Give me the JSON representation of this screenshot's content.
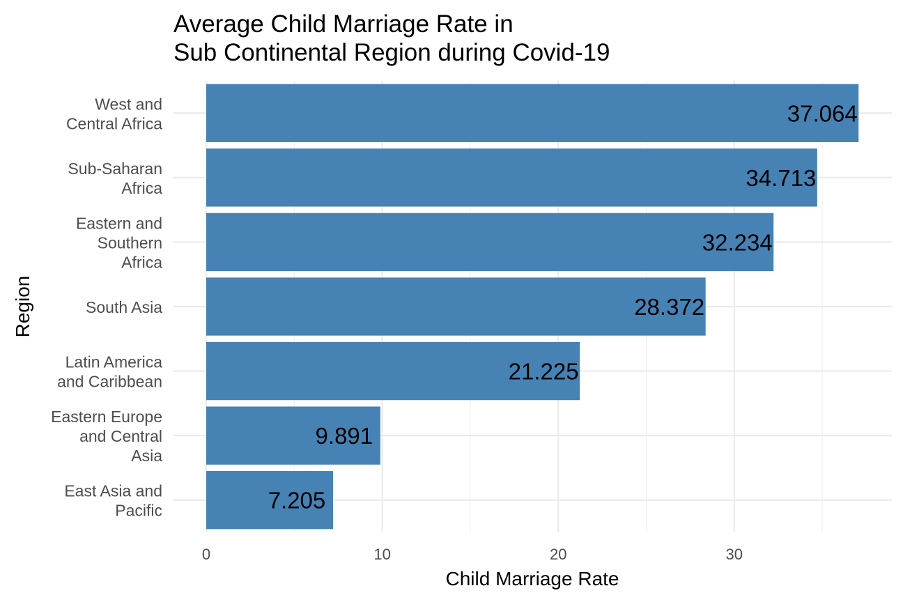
{
  "chart_data": {
    "type": "bar",
    "orientation": "horizontal",
    "title_lines": [
      "Average Child Marriage Rate in",
      "Sub Continental Region during Covid-19"
    ],
    "xlabel": "Child Marriage Rate",
    "ylabel": "Region",
    "xlim": [
      0,
      39
    ],
    "xticks": [
      0,
      10,
      20,
      30
    ],
    "grid": true,
    "bar_color": "#4682B4",
    "categories": [
      [
        "West and",
        "Central Africa"
      ],
      [
        "Sub-Saharan",
        "Africa"
      ],
      [
        "Eastern and",
        "Southern",
        "Africa"
      ],
      [
        "South Asia"
      ],
      [
        "Latin America",
        "and Caribbean"
      ],
      [
        "Eastern Europe",
        "and Central",
        "Asia"
      ],
      [
        "East Asia and",
        "Pacific"
      ]
    ],
    "values": [
      37.064,
      34.713,
      32.234,
      28.372,
      21.225,
      9.891,
      7.205
    ],
    "data_labels": [
      "37.064",
      "34.713",
      "32.234",
      "28.372",
      "21.225",
      "9.891",
      "7.205"
    ]
  }
}
